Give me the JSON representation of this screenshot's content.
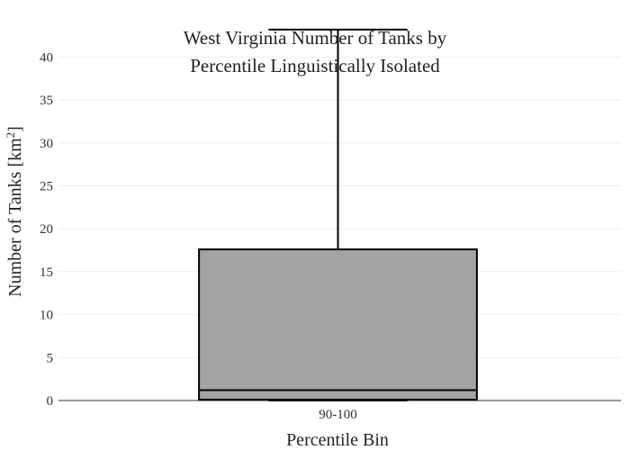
{
  "chart_data": {
    "type": "box",
    "title_lines": [
      "West Virginia Number of Tanks by",
      "Percentile Linguistically Isolated"
    ],
    "xlabel": "Percentile Bin",
    "ylabel_main": "Number of Tanks  [km",
    "ylabel_sup": "2",
    "ylabel_end": "]",
    "categories": [
      "90-100"
    ],
    "ylim": [
      0,
      43.5
    ],
    "yticks": [
      0,
      5,
      10,
      15,
      20,
      25,
      30,
      35,
      40
    ],
    "grid": true,
    "box": {
      "min": 0,
      "q1": 0.1,
      "median": 1.2,
      "q3": 17.6,
      "max": 43.2
    },
    "colors": {
      "box_fill": "#a3a3a3",
      "box_stroke": "#000000"
    }
  }
}
